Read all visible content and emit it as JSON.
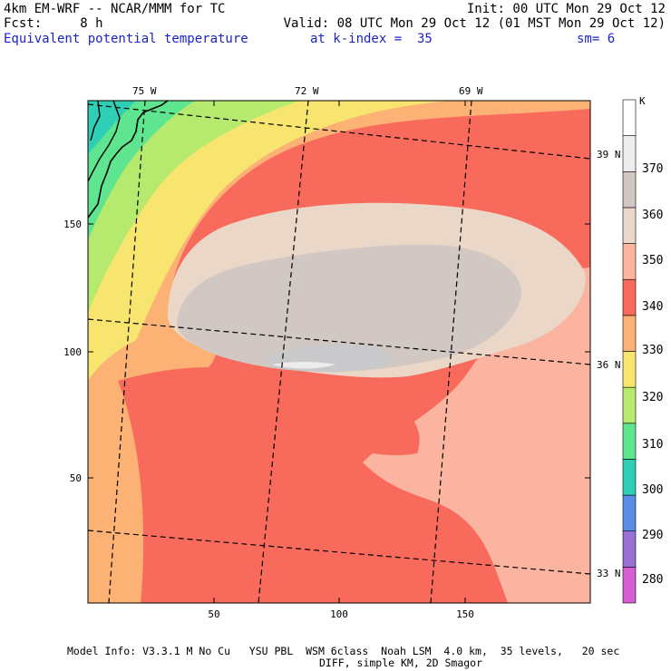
{
  "header": {
    "line1_left": "4km EM-WRF -- NCAR/MMM for TC",
    "line1_right": "Init: 00 UTC Mon 29 Oct 12",
    "line2_left": "Fcst:     8 h",
    "line2_right": "Valid: 08 UTC Mon 29 Oct 12 (01 MST Mon 29 Oct 12)",
    "line3_field": "Equivalent potential temperature",
    "line3_kindex": "at k-index =  35",
    "line3_sm": "sm= 6"
  },
  "map": {
    "lon_labels": [
      "75 W",
      "72 W",
      "69 W"
    ],
    "lat_labels": [
      "39 N",
      "36 N",
      "33 N"
    ],
    "x_ticks": [
      "50",
      "100",
      "150"
    ],
    "y_ticks": [
      "150",
      "100",
      "50"
    ]
  },
  "colorbar": {
    "unit": "K",
    "levels": [
      280,
      290,
      300,
      310,
      320,
      330,
      340,
      350,
      360,
      370
    ],
    "colors": [
      "#d75ed2",
      "#9a6fd6",
      "#5a8ee6",
      "#2fcfb5",
      "#5fe58f",
      "#b6ea6f",
      "#f7e56f",
      "#fbb274",
      "#f86a5c",
      "#fbb49f",
      "#ebd7c7",
      "#d1c8c4",
      "#ececec",
      "#ffffff"
    ]
  },
  "footer": {
    "line1": "Model Info: V3.3.1 M No Cu   YSU PBL  WSM 6class  Noah LSM  4.0 km,  35 levels,   20 sec",
    "line2": "DIFF, simple KM, 2D Smagor"
  }
}
